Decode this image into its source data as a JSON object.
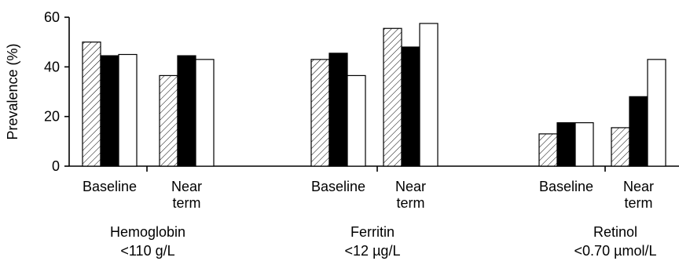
{
  "chart_data": {
    "type": "bar",
    "ylabel": "Prevalence (%)",
    "ylim": [
      0,
      60
    ],
    "yticks": [
      0,
      20,
      40,
      60
    ],
    "grid": false,
    "legend": "none",
    "series_styles": [
      "hatched",
      "black",
      "white"
    ],
    "groups": [
      {
        "label": "Hemoglobin",
        "sublabel": "<110 g/L",
        "subgroups": [
          {
            "label_lines": [
              "Baseline"
            ],
            "values": [
              50,
              44.5,
              45
            ]
          },
          {
            "label_lines": [
              "Near",
              "term"
            ],
            "values": [
              36.5,
              44.5,
              43
            ]
          }
        ]
      },
      {
        "label": "Ferritin",
        "sublabel": "<12 µg/L",
        "subgroups": [
          {
            "label_lines": [
              "Baseline"
            ],
            "values": [
              43,
              45.5,
              36.5
            ]
          },
          {
            "label_lines": [
              "Near",
              "term"
            ],
            "values": [
              55.5,
              48,
              57.5
            ]
          }
        ]
      },
      {
        "label": "Retinol",
        "sublabel": "<0.70 µmol/L",
        "subgroups": [
          {
            "label_lines": [
              "Baseline"
            ],
            "values": [
              13,
              17.5,
              17.5
            ]
          },
          {
            "label_lines": [
              "Near",
              "term"
            ],
            "values": [
              15.5,
              28,
              43
            ]
          }
        ]
      }
    ]
  }
}
